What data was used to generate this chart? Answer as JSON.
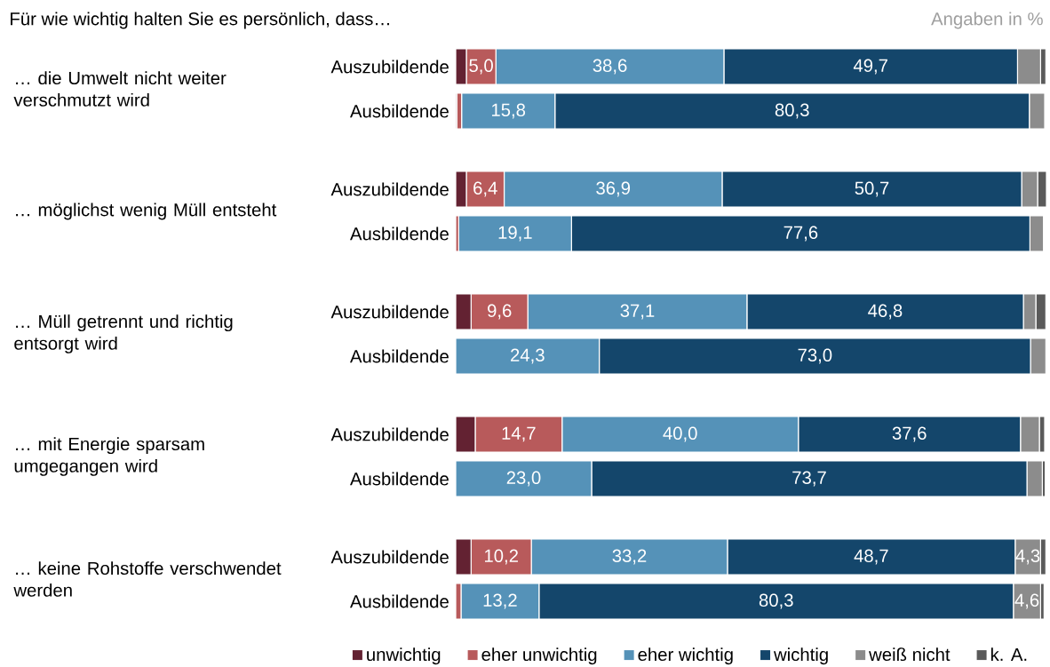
{
  "chart_data": {
    "type": "bar",
    "orientation": "horizontal",
    "stacked": true,
    "title": "Für wie wichtig halten Sie es persönlich, dass…",
    "annotations": [
      "Angaben in %",
      "… die Umwelt nicht weiter verschmutzt wird",
      "… möglichst wenig Müll entsteht",
      "… Müll getrennt und richtig entsorgt wird",
      "… mit Energie sparsam umgegangen wird",
      "… keine Rohstoffe verschwendet werden"
    ],
    "categories": [
      "Auszubildende",
      "Ausbildende",
      "Auszubildende",
      "Ausbildende",
      "Auszubildende",
      "Ausbildende",
      "Auszubildende",
      "Ausbildende",
      "Auszubildende",
      "Ausbildende"
    ],
    "series": [
      {
        "name": "unwichtig",
        "color": "#632232",
        "values": [
          1.8,
          0.2,
          1.8,
          null,
          2.6,
          null,
          3.3,
          null,
          2.6,
          null
        ],
        "value_labels": [
          null,
          null,
          null,
          null,
          null,
          null,
          null,
          null,
          null,
          null
        ]
      },
      {
        "name": "eher unwichtig",
        "color": "#b85a5b",
        "values": [
          5.0,
          0.8,
          6.4,
          0.5,
          9.6,
          null,
          14.7,
          null,
          10.2,
          0.9
        ],
        "value_labels": [
          "5,0",
          null,
          "6,4",
          null,
          "9,6",
          null,
          "14,7",
          null,
          "10,2",
          null
        ]
      },
      {
        "name": "eher wichtig",
        "color": "#5592b8",
        "values": [
          38.6,
          15.8,
          36.9,
          19.1,
          37.1,
          24.3,
          40.0,
          23.0,
          33.2,
          13.2
        ],
        "value_labels": [
          "38,6",
          "15,8",
          "36,9",
          "19,1",
          "37,1",
          "24,3",
          "40,0",
          "23,0",
          "33,2",
          "13,2"
        ]
      },
      {
        "name": "wichtig",
        "color": "#14466b",
        "values": [
          49.7,
          80.3,
          50.7,
          77.6,
          46.8,
          73.0,
          37.6,
          73.7,
          48.7,
          80.3
        ],
        "value_labels": [
          "49,7",
          "80,3",
          "50,7",
          "77,6",
          "46,8",
          "73,0",
          "37,6",
          "73,7",
          "48,7",
          "80,3"
        ]
      },
      {
        "name": "weiß nicht",
        "color": "#8c8c8c",
        "values": [
          3.9,
          2.6,
          2.7,
          2.3,
          2.1,
          2.6,
          3.2,
          2.6,
          4.3,
          4.6
        ],
        "value_labels": [
          null,
          null,
          null,
          null,
          null,
          null,
          null,
          null,
          "4,3",
          "4,6"
        ]
      },
      {
        "name": "k. A.",
        "color": "#5a5a5a",
        "values": [
          0.9,
          null,
          1.5,
          null,
          1.7,
          null,
          0.9,
          0.5,
          0.9,
          0.6
        ],
        "value_labels": [
          null,
          null,
          null,
          null,
          null,
          null,
          null,
          null,
          null,
          null
        ]
      }
    ],
    "legend": "bottom"
  }
}
